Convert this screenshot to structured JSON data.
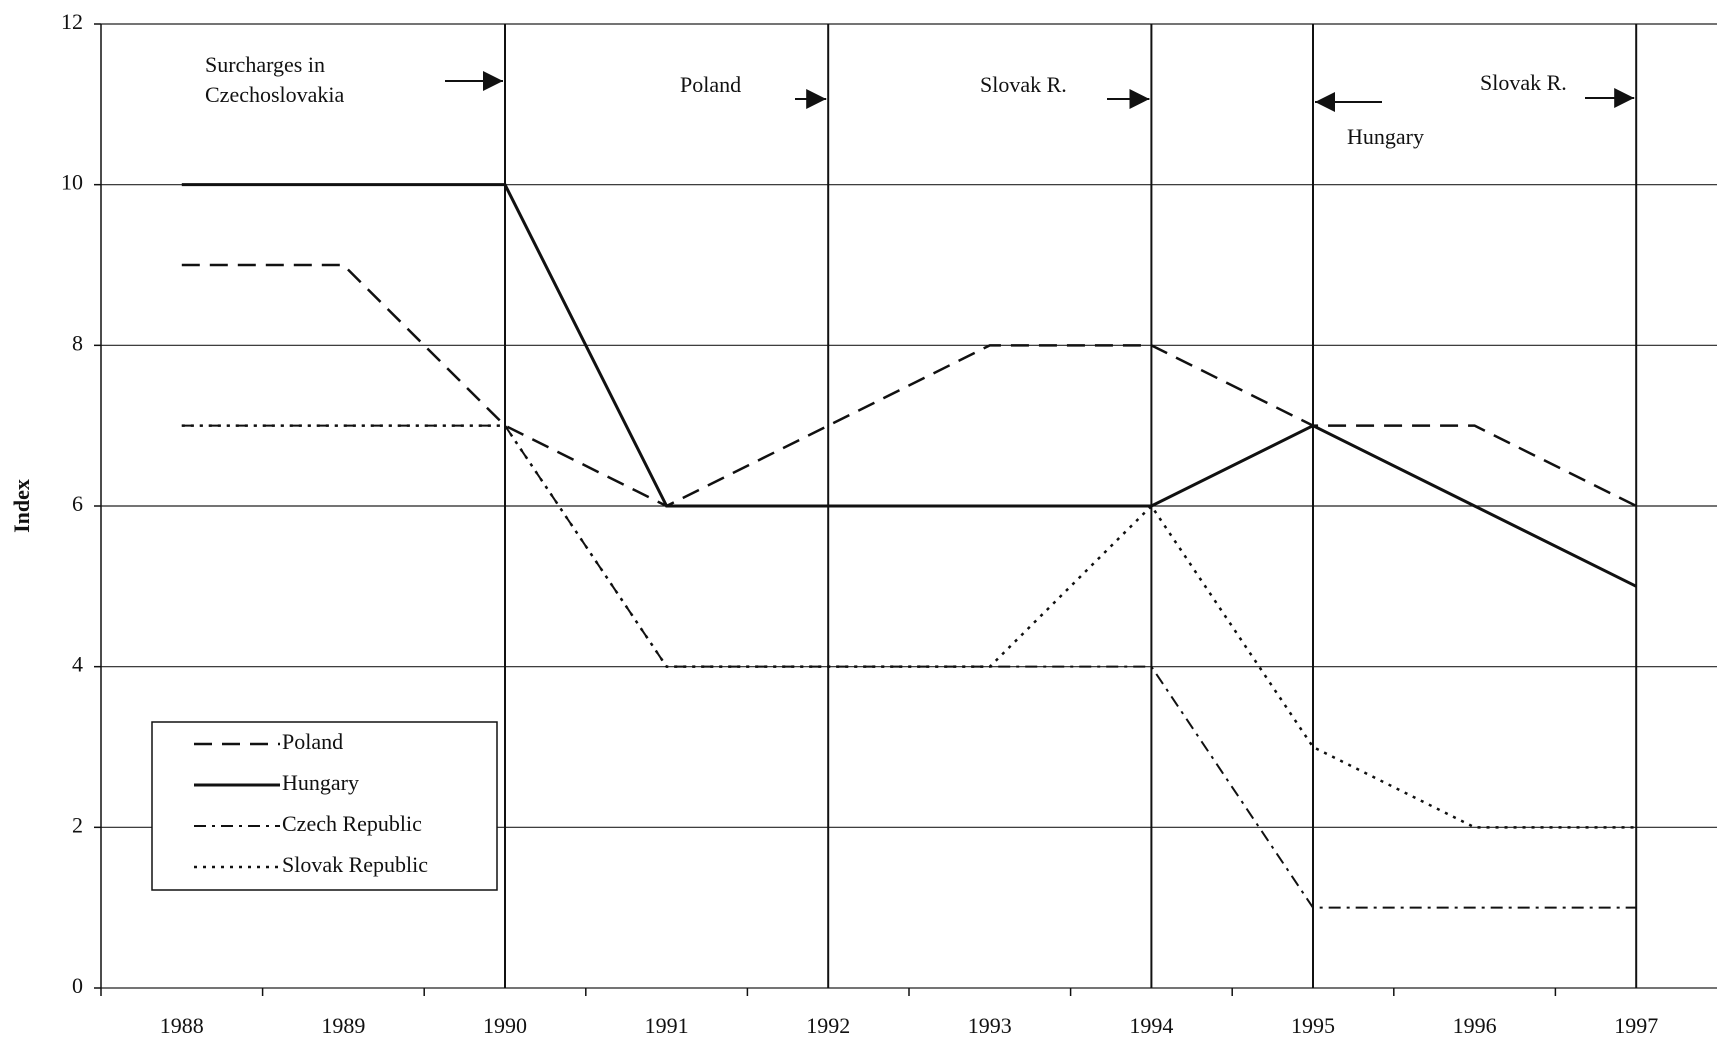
{
  "chart_data": {
    "type": "line",
    "y_label": "Index",
    "categories": [
      "1988",
      "1989",
      "1990",
      "1991",
      "1992",
      "1993",
      "1994",
      "1995",
      "1996",
      "1997"
    ],
    "series": [
      {
        "name": "Poland",
        "color": "#111111",
        "style": "dashed",
        "values": [
          9,
          9,
          7,
          6,
          7,
          8,
          8,
          7,
          7,
          6
        ]
      },
      {
        "name": "Hungary",
        "color": "#111111",
        "style": "solid",
        "values": [
          10,
          10,
          10,
          6,
          6,
          6,
          6,
          7,
          6,
          5
        ]
      },
      {
        "name": "Czech Republic",
        "color": "#111111",
        "style": "dash-dot",
        "values": [
          7,
          7,
          7,
          4,
          4,
          4,
          4,
          1,
          1,
          1
        ]
      },
      {
        "name": "Slovak Republic",
        "color": "#111111",
        "style": "dotted",
        "values": [
          7,
          7,
          7,
          4,
          4,
          4,
          6,
          3,
          2,
          2
        ]
      }
    ],
    "ylim": [
      0,
      12
    ],
    "yticks": [
      0,
      2,
      4,
      6,
      8,
      10,
      12
    ],
    "grid": true,
    "legend": "lower left",
    "annotations": [
      "Surcharges in Czechoslovakia",
      "Poland",
      "Slovak R.",
      "Hungary",
      "Slovak R."
    ]
  }
}
